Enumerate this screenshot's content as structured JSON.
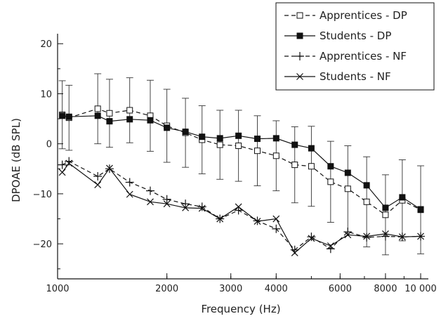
{
  "chart_data": {
    "type": "line",
    "xlabel": "Frequency (Hz)",
    "ylabel": "DPOAE (dB SPL)",
    "x_scale": "log",
    "xlim": [
      1000,
      10500
    ],
    "ylim": [
      -27,
      22
    ],
    "x_ticks": [
      {
        "value": 1000,
        "label": "1000"
      },
      {
        "value": 2000,
        "label": "2000"
      },
      {
        "value": 3000,
        "label": "3000"
      },
      {
        "value": 4000,
        "label": "4000"
      },
      {
        "value": 6000,
        "label": "6000"
      },
      {
        "value": 8000,
        "label": "8000"
      },
      {
        "value": 10000,
        "label": "10 000"
      }
    ],
    "y_ticks": [
      {
        "value": 20,
        "label": "20"
      },
      {
        "value": 10,
        "label": "10"
      },
      {
        "value": 0,
        "label": "0"
      },
      {
        "value": -10,
        "label": "−10"
      },
      {
        "value": -20,
        "label": "−20"
      }
    ],
    "legend_position": "top-right",
    "x": [
      1030,
      1075,
      1290,
      1390,
      1580,
      1800,
      2000,
      2250,
      2500,
      2800,
      3150,
      3550,
      4000,
      4500,
      5000,
      5650,
      6300,
      7100,
      8000,
      8900,
      10000
    ],
    "series": [
      {
        "name": "Apprentices - DP",
        "line": "dashed",
        "marker": "open-square",
        "values": [
          5.8,
          5.2,
          7.0,
          6.1,
          6.7,
          5.6,
          3.6,
          2.2,
          0.8,
          -0.2,
          -0.4,
          -1.4,
          -2.4,
          -4.2,
          -4.5,
          -7.6,
          -9.0,
          -11.6,
          -14.2,
          -11.3,
          -13.2
        ],
        "error": [
          6.8,
          6.5,
          7.0,
          6.8,
          6.5,
          7.1,
          7.3,
          6.9,
          6.8,
          6.9,
          7.1,
          7.0,
          7.0,
          7.6,
          8.0,
          8.1,
          8.6,
          9.0,
          8.0,
          8.1,
          8.8
        ]
      },
      {
        "name": "Students - DP",
        "line": "solid",
        "marker": "filled-square",
        "values": [
          5.6,
          5.4,
          5.6,
          4.5,
          4.9,
          4.7,
          3.2,
          2.4,
          1.4,
          1.1,
          1.6,
          1.0,
          1.1,
          -0.2,
          -0.9,
          -4.5,
          -5.8,
          -8.3,
          -12.8,
          -10.7,
          -13.1
        ]
      },
      {
        "name": "Apprentices - NF",
        "line": "dashed",
        "marker": "plus",
        "values": [
          -4.2,
          -3.5,
          -6.5,
          -5.0,
          -7.7,
          -9.4,
          -11.1,
          -12.0,
          -12.6,
          -15.0,
          -13.3,
          -15.4,
          -17.0,
          -21.2,
          -18.6,
          -21.0,
          -17.6,
          -18.7,
          -18.5,
          -18.6,
          -18.5
        ]
      },
      {
        "name": "Students - NF",
        "line": "solid",
        "marker": "cross",
        "values": [
          -5.7,
          -3.9,
          -8.2,
          -4.9,
          -10.1,
          -11.6,
          -12.0,
          -12.8,
          -12.9,
          -15.0,
          -12.6,
          -15.5,
          -15.0,
          -21.8,
          -18.9,
          -20.4,
          -18.2,
          -18.5,
          -18.0,
          -18.6,
          -18.5
        ]
      }
    ]
  }
}
